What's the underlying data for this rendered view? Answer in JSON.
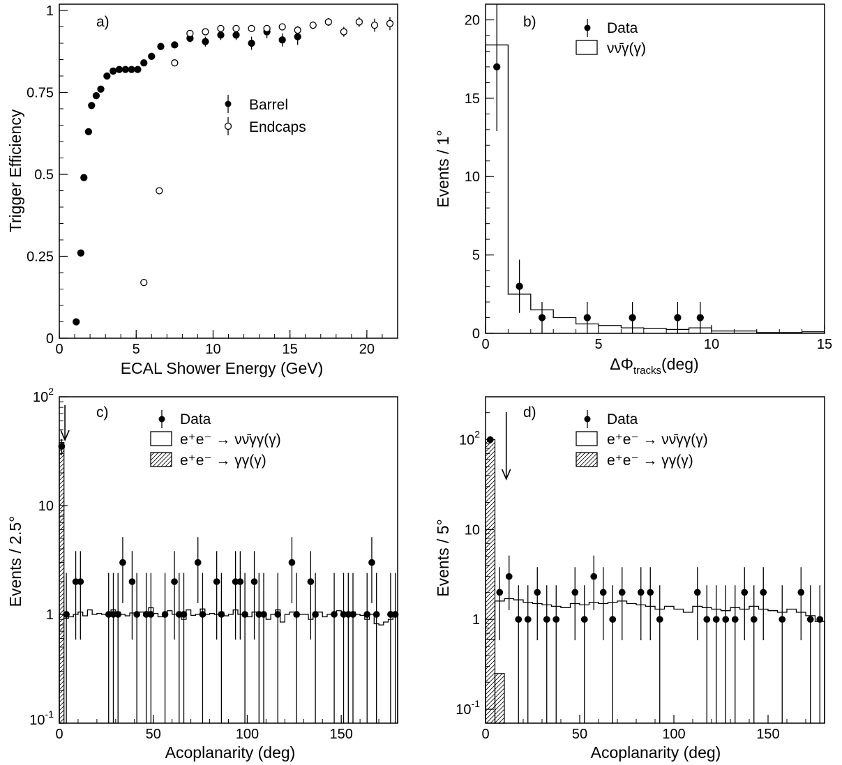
{
  "chart_data": [
    {
      "panel": "a)",
      "type": "scatter",
      "xlabel": "ECAL Shower Energy (GeV)",
      "ylabel": "Trigger Efficiency",
      "xlim": [
        0,
        22
      ],
      "ylim": [
        0,
        1
      ],
      "xticks": [
        0,
        5,
        10,
        15,
        20
      ],
      "yticks": [
        "0",
        "0.25",
        "0.5",
        "0.75",
        "1"
      ],
      "series": [
        {
          "name": "Barrel",
          "marker": "filled",
          "x": [
            1.1,
            1.4,
            1.6,
            1.9,
            2.1,
            2.4,
            2.7,
            3.1,
            3.5,
            3.9,
            4.3,
            4.7,
            5.1,
            5.5,
            6.0,
            6.6,
            7.5,
            8.5,
            9.5,
            10.5,
            11.5,
            12.5,
            13.5,
            14.5,
            15.5
          ],
          "y": [
            0.05,
            0.26,
            0.49,
            0.63,
            0.71,
            0.74,
            0.76,
            0.8,
            0.815,
            0.82,
            0.82,
            0.82,
            0.82,
            0.84,
            0.86,
            0.89,
            0.895,
            0.915,
            0.905,
            0.925,
            0.925,
            0.9,
            0.935,
            0.91,
            0.92
          ],
          "err": [
            0.005,
            0.005,
            0.005,
            0.005,
            0.005,
            0.005,
            0.005,
            0.005,
            0.005,
            0.005,
            0.005,
            0.005,
            0.005,
            0.005,
            0.005,
            0.005,
            0.008,
            0.012,
            0.015,
            0.015,
            0.015,
            0.02,
            0.02,
            0.02,
            0.025
          ]
        },
        {
          "name": "Endcaps",
          "marker": "open",
          "x": [
            5.5,
            6.5,
            7.5,
            8.5,
            9.5,
            10.5,
            11.5,
            12.5,
            13.5,
            14.5,
            15.5,
            16.5,
            17.5,
            18.5,
            19.5,
            20.5,
            21.5
          ],
          "y": [
            0.17,
            0.45,
            0.84,
            0.93,
            0.935,
            0.945,
            0.945,
            0.945,
            0.945,
            0.95,
            0.94,
            0.955,
            0.965,
            0.935,
            0.965,
            0.955,
            0.96
          ],
          "err": [
            0.004,
            0.006,
            0.006,
            0.01,
            0.01,
            0.01,
            0.01,
            0.01,
            0.01,
            0.01,
            0.012,
            0.012,
            0.012,
            0.015,
            0.015,
            0.02,
            0.02
          ]
        }
      ]
    },
    {
      "panel": "b)",
      "type": "histogram+points",
      "xlabel_main": "ΔΦ",
      "xlabel_sub": "tracks",
      "xlabel_tail": "(deg)",
      "ylabel": "Events / 1°",
      "xlim": [
        0,
        15
      ],
      "ylim": [
        0,
        21
      ],
      "xticks": [
        0,
        5,
        10,
        15
      ],
      "yticks": [
        0,
        5,
        10,
        15,
        20
      ],
      "data": {
        "name": "Data",
        "x": [
          0.5,
          1.5,
          2.5,
          4.5,
          6.5,
          8.5,
          9.5
        ],
        "y": [
          17,
          3,
          1,
          1,
          1,
          1,
          1
        ],
        "err": [
          4.1,
          1.7,
          1,
          1,
          1,
          1,
          1
        ]
      },
      "mc": {
        "name": "νν̄γ(γ)",
        "edges": [
          0,
          1,
          2,
          3,
          4,
          5,
          6,
          7,
          8,
          9,
          10,
          11,
          12,
          13,
          14,
          15
        ],
        "values": [
          18.4,
          2.5,
          1.5,
          1.0,
          0.6,
          0.5,
          0.35,
          0.3,
          0.25,
          0.35,
          0.15,
          0.15,
          0.05,
          0.05,
          0.1
        ]
      }
    },
    {
      "panel": "c)",
      "type": "histogram+points",
      "yscale": "log",
      "xlabel": "Acoplanarity (deg)",
      "ylabel": "Events / 2.5°",
      "xlim": [
        0,
        180
      ],
      "ylim": [
        0.1,
        100
      ],
      "xticks": [
        0,
        50,
        100,
        150
      ],
      "yticks": [
        "10^-1",
        "1",
        "10",
        "10^2"
      ],
      "data": {
        "name": "Data",
        "x": [
          1.25,
          3.75,
          8.75,
          11.25,
          26.25,
          28.75,
          31.25,
          33.75,
          38.75,
          41.25,
          46.25,
          48.75,
          56.25,
          61.25,
          63.75,
          66.25,
          73.75,
          76.25,
          83.75,
          86.25,
          93.75,
          96.25,
          98.75,
          103.75,
          106.25,
          108.75,
          116.25,
          123.75,
          126.25,
          133.75,
          136.25,
          146.25,
          151.25,
          153.75,
          156.25,
          163.75,
          166.25,
          168.75,
          176.25,
          178.75
        ],
        "y": [
          35,
          1,
          2,
          2,
          1,
          1,
          1,
          3,
          2,
          1,
          1,
          1,
          1,
          2,
          1,
          1,
          3,
          1,
          2,
          1,
          2,
          2,
          1,
          2,
          1,
          1,
          1,
          3,
          1,
          2,
          1,
          1,
          1,
          1,
          1,
          1,
          3,
          1,
          1,
          1
        ]
      },
      "bg": {
        "name": "e⁺e⁻ → γγ(γ)",
        "x0": 0,
        "x1": 2.5,
        "value": 38
      },
      "mc": {
        "name": "e⁺e⁻ → νν̄γγ(γ)",
        "values": [
          1.0,
          0.92,
          0.95,
          1.0,
          1.05,
          0.97,
          1.1,
          1.0,
          1.02,
          1.0,
          0.98,
          1.1,
          1.05,
          1.0,
          0.97,
          1.03,
          1.0,
          1.05,
          1.0,
          1.15,
          1.02,
          0.95,
          1.0,
          1.08,
          1.0,
          1.03,
          0.9,
          1.1,
          0.98,
          1.0,
          1.12,
          1.0,
          1.02,
          1.0,
          1.05,
          0.97,
          1.0,
          1.1,
          1.0,
          1.0,
          0.95,
          1.05,
          1.0,
          1.0,
          0.9,
          1.0,
          1.1,
          0.85,
          1.0,
          1.05,
          0.95,
          1.0,
          1.0,
          0.9,
          0.95,
          1.05,
          0.95,
          1.0,
          1.0,
          1.08,
          0.97,
          1.0,
          1.05,
          1.0,
          0.98,
          0.9,
          1.0,
          0.82,
          0.8,
          0.85,
          0.9,
          0.95
        ]
      },
      "arrow_x": 3
    },
    {
      "panel": "d)",
      "type": "histogram+points",
      "yscale": "log",
      "xlabel": "Acoplanarity (deg)",
      "ylabel": "Events / 5°",
      "xlim": [
        0,
        180
      ],
      "ylim": [
        0.07,
        300
      ],
      "xticks": [
        0,
        50,
        100,
        150
      ],
      "yticks": [
        "10^-1",
        "1",
        "10",
        "10^2"
      ],
      "data": {
        "name": "Data",
        "x": [
          2.5,
          7.5,
          12.5,
          17.5,
          22.5,
          27.5,
          32.5,
          37.5,
          47.5,
          52.5,
          57.5,
          62.5,
          67.5,
          72.5,
          82.5,
          87.5,
          92.5,
          112.5,
          117.5,
          122.5,
          127.5,
          132.5,
          137.5,
          142.5,
          147.5,
          157.5,
          167.5,
          172.5,
          177.5
        ],
        "y": [
          100,
          2,
          3,
          1,
          1,
          2,
          1,
          1,
          2,
          1,
          3,
          2,
          1,
          2,
          2,
          2,
          1,
          2,
          1,
          1,
          1,
          1,
          2,
          1,
          2,
          1,
          2,
          1,
          1
        ]
      },
      "bg": {
        "name": "e⁺e⁻ → γγ(γ)",
        "edges": [
          0,
          5,
          10
        ],
        "values": [
          100,
          0.25
        ]
      },
      "mc": {
        "name": "e⁺e⁻ → νν̄γγ(γ)",
        "values": [
          0.6,
          1.6,
          1.7,
          1.65,
          1.55,
          1.5,
          1.45,
          1.4,
          1.35,
          1.5,
          1.45,
          1.55,
          1.5,
          1.55,
          1.6,
          1.5,
          1.45,
          1.4,
          1.3,
          1.4,
          1.3,
          1.2,
          1.4,
          1.35,
          1.3,
          1.25,
          1.35,
          1.3,
          1.4,
          1.3,
          1.25,
          1.2,
          1.3,
          1.2,
          1.1,
          0.95
        ]
      },
      "arrow_x": 11
    }
  ]
}
